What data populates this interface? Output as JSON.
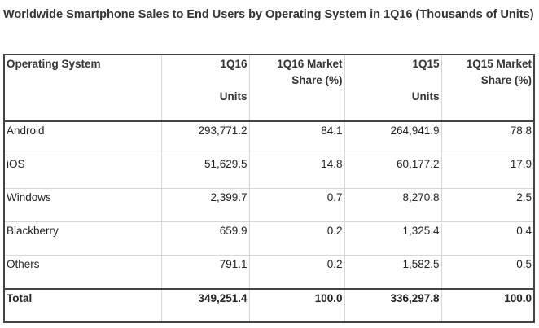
{
  "title": "Worldwide Smartphone Sales to End Users by Operating System in 1Q16 (Thousands of Units)",
  "table": {
    "headers": [
      {
        "line1": "Operating System",
        "line2": ""
      },
      {
        "line1": "1Q16",
        "line2": "Units"
      },
      {
        "line1": "1Q16 Market Share (%)",
        "line2": ""
      },
      {
        "line1": "1Q15",
        "line2": "Units"
      },
      {
        "line1": "1Q15 Market Share (%)",
        "line2": ""
      }
    ],
    "rows": [
      {
        "os": "Android",
        "units_1q16": "293,771.2",
        "share_1q16": "84.1",
        "units_1q15": "264,941.9",
        "share_1q15": "78.8"
      },
      {
        "os": "iOS",
        "units_1q16": "51,629.5",
        "share_1q16": "14.8",
        "units_1q15": "60,177.2",
        "share_1q15": "17.9"
      },
      {
        "os": "Windows",
        "units_1q16": "2,399.7",
        "share_1q16": "0.7",
        "units_1q15": "8,270.8",
        "share_1q15": "2.5"
      },
      {
        "os": "Blackberry",
        "units_1q16": "659.9",
        "share_1q16": "0.2",
        "units_1q15": "1,325.4",
        "share_1q15": "0.4"
      },
      {
        "os": "Others",
        "units_1q16": "791.1",
        "share_1q16": "0.2",
        "units_1q15": "1,582.5",
        "share_1q15": "0.5"
      }
    ],
    "total": {
      "os": "Total",
      "units_1q16": "349,251.4",
      "share_1q16": "100.0",
      "units_1q15": "336,297.8",
      "share_1q15": "100.0"
    }
  }
}
